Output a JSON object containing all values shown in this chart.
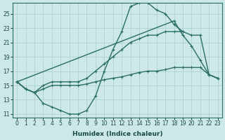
{
  "xlabel": "Humidex (Indice chaleur)",
  "xlim": [
    -0.5,
    23.5
  ],
  "ylim": [
    10.5,
    26.5
  ],
  "yticks": [
    11,
    13,
    15,
    17,
    19,
    21,
    23,
    25
  ],
  "xticks": [
    0,
    1,
    2,
    3,
    4,
    5,
    6,
    7,
    8,
    9,
    10,
    11,
    12,
    13,
    14,
    15,
    16,
    17,
    18,
    19,
    20,
    21,
    22,
    23
  ],
  "bg_color": "#cce8e8",
  "line_color": "#2a6e65",
  "grid_color": "#aacece",
  "line1_x": [
    0,
    1,
    2,
    3,
    4,
    5,
    6,
    7,
    8,
    9,
    10,
    11,
    12,
    13,
    14,
    15,
    16,
    17,
    18,
    19,
    20,
    21,
    22,
    23
  ],
  "line1_y": [
    15.5,
    14.5,
    14.0,
    12.5,
    12.0,
    11.5,
    11.0,
    11.0,
    11.5,
    13.5,
    17.0,
    20.0,
    22.5,
    26.0,
    26.5,
    26.5,
    25.5,
    25.0,
    23.5,
    22.5,
    null,
    null,
    null,
    null
  ],
  "line2_x": [
    0,
    1,
    2,
    3,
    4,
    5,
    6,
    7,
    8,
    9,
    10,
    11,
    12,
    13,
    14,
    15,
    16,
    17,
    18,
    19,
    20,
    21,
    22,
    23
  ],
  "line2_y": [
    15.5,
    null,
    null,
    null,
    null,
    null,
    null,
    null,
    null,
    null,
    null,
    null,
    null,
    null,
    null,
    null,
    null,
    null,
    24.0,
    22.0,
    20.5,
    18.5,
    16.5,
    16.0
  ],
  "line3_x": [
    0,
    1,
    2,
    3,
    4,
    5,
    6,
    7,
    8,
    9,
    10,
    11,
    12,
    13,
    14,
    15,
    16,
    17,
    18,
    19,
    20,
    21,
    22,
    23
  ],
  "line3_y": [
    15.5,
    14.5,
    14.0,
    15.0,
    15.5,
    15.5,
    15.5,
    15.5,
    16.0,
    17.0,
    18.0,
    19.0,
    20.0,
    21.0,
    21.5,
    22.0,
    22.0,
    22.5,
    22.5,
    22.5,
    22.0,
    22.0,
    16.5,
    16.0
  ],
  "line4_x": [
    0,
    1,
    2,
    3,
    4,
    5,
    6,
    7,
    8,
    9,
    10,
    11,
    12,
    13,
    14,
    15,
    16,
    17,
    18,
    19,
    20,
    21,
    22,
    23
  ],
  "line4_y": [
    15.5,
    14.5,
    14.0,
    14.5,
    15.0,
    15.0,
    15.0,
    15.0,
    15.2,
    15.5,
    15.8,
    16.0,
    16.2,
    16.5,
    16.8,
    17.0,
    17.0,
    17.2,
    17.5,
    17.5,
    17.5,
    17.5,
    16.5,
    16.0
  ],
  "marker": "+",
  "markersize": 3.5,
  "linewidth": 1.0
}
